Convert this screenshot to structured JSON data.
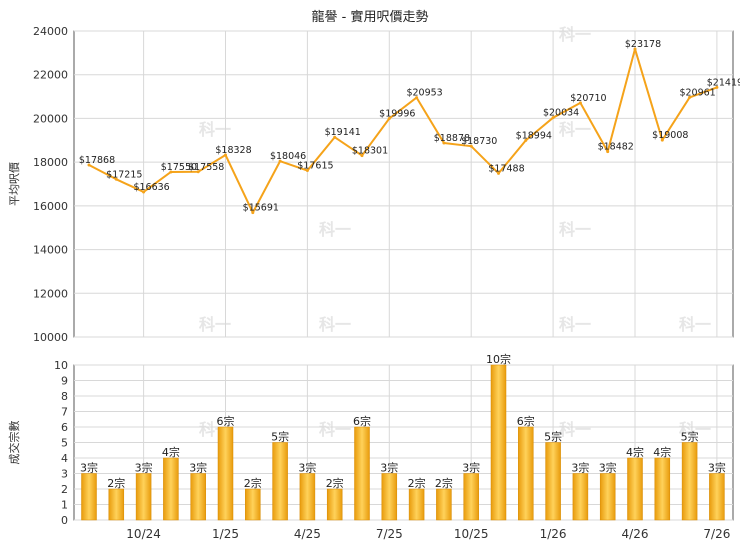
{
  "page_title": "龍譽 - 實用呎價走勢",
  "colors": {
    "line": "#f5a31a",
    "bar": "#f5b21c",
    "grid": "#d8d8d8",
    "axis": "#555555",
    "watermark": "#e6e6e6"
  },
  "watermark_text": "科一",
  "chart_data": [
    {
      "type": "line",
      "title": "龍譽 - 實用呎價走勢",
      "ylabel": "平均呎價",
      "ylim": [
        10000,
        24000
      ],
      "yticks": [
        10000,
        12000,
        14000,
        16000,
        18000,
        20000,
        22000,
        24000
      ],
      "x_tick_labels": [
        "10/24",
        "1/25",
        "4/25",
        "7/25",
        "10/25",
        "1/26",
        "4/26",
        "7/26"
      ],
      "grid": true,
      "series": [
        {
          "values": [
            17868,
            17215,
            16636,
            17550,
            17558,
            18328,
            15691,
            18046,
            17615,
            19141,
            18301,
            19996,
            20953,
            18878,
            18730,
            17488,
            18994,
            20034,
            20710,
            18482,
            23178,
            19008,
            20961,
            21419
          ],
          "labels": [
            "$17868",
            "$17215",
            "$16636",
            "$17550",
            "$17558",
            "$18328",
            "$15691",
            "$18046",
            "$17615",
            "$19141",
            "$18301",
            "$19996",
            "$20953",
            "$18878",
            "$18730",
            "$17488",
            "$18994",
            "$20034",
            "$20710",
            "$18482",
            "$23178",
            "$19008",
            "$20961",
            "$21419"
          ]
        }
      ]
    },
    {
      "type": "bar",
      "ylabel": "成交宗數",
      "ylim": [
        0,
        10
      ],
      "yticks": [
        0,
        1,
        2,
        3,
        4,
        5,
        6,
        7,
        8,
        9,
        10
      ],
      "x_tick_labels": [
        "10/24",
        "1/25",
        "4/25",
        "7/25",
        "10/25",
        "1/26",
        "4/26",
        "7/26"
      ],
      "grid": true,
      "series": [
        {
          "values": [
            3,
            2,
            3,
            4,
            3,
            6,
            2,
            5,
            3,
            2,
            6,
            3,
            2,
            2,
            3,
            10,
            6,
            5,
            3,
            3,
            4,
            4,
            5,
            3
          ],
          "labels": [
            "3宗",
            "2宗",
            "3宗",
            "4宗",
            "3宗",
            "6宗",
            "2宗",
            "5宗",
            "3宗",
            "2宗",
            "6宗",
            "3宗",
            "2宗",
            "2宗",
            "3宗",
            "10宗",
            "6宗",
            "5宗",
            "3宗",
            "3宗",
            "4宗",
            "4宗",
            "5宗",
            "3宗"
          ]
        }
      ]
    }
  ]
}
